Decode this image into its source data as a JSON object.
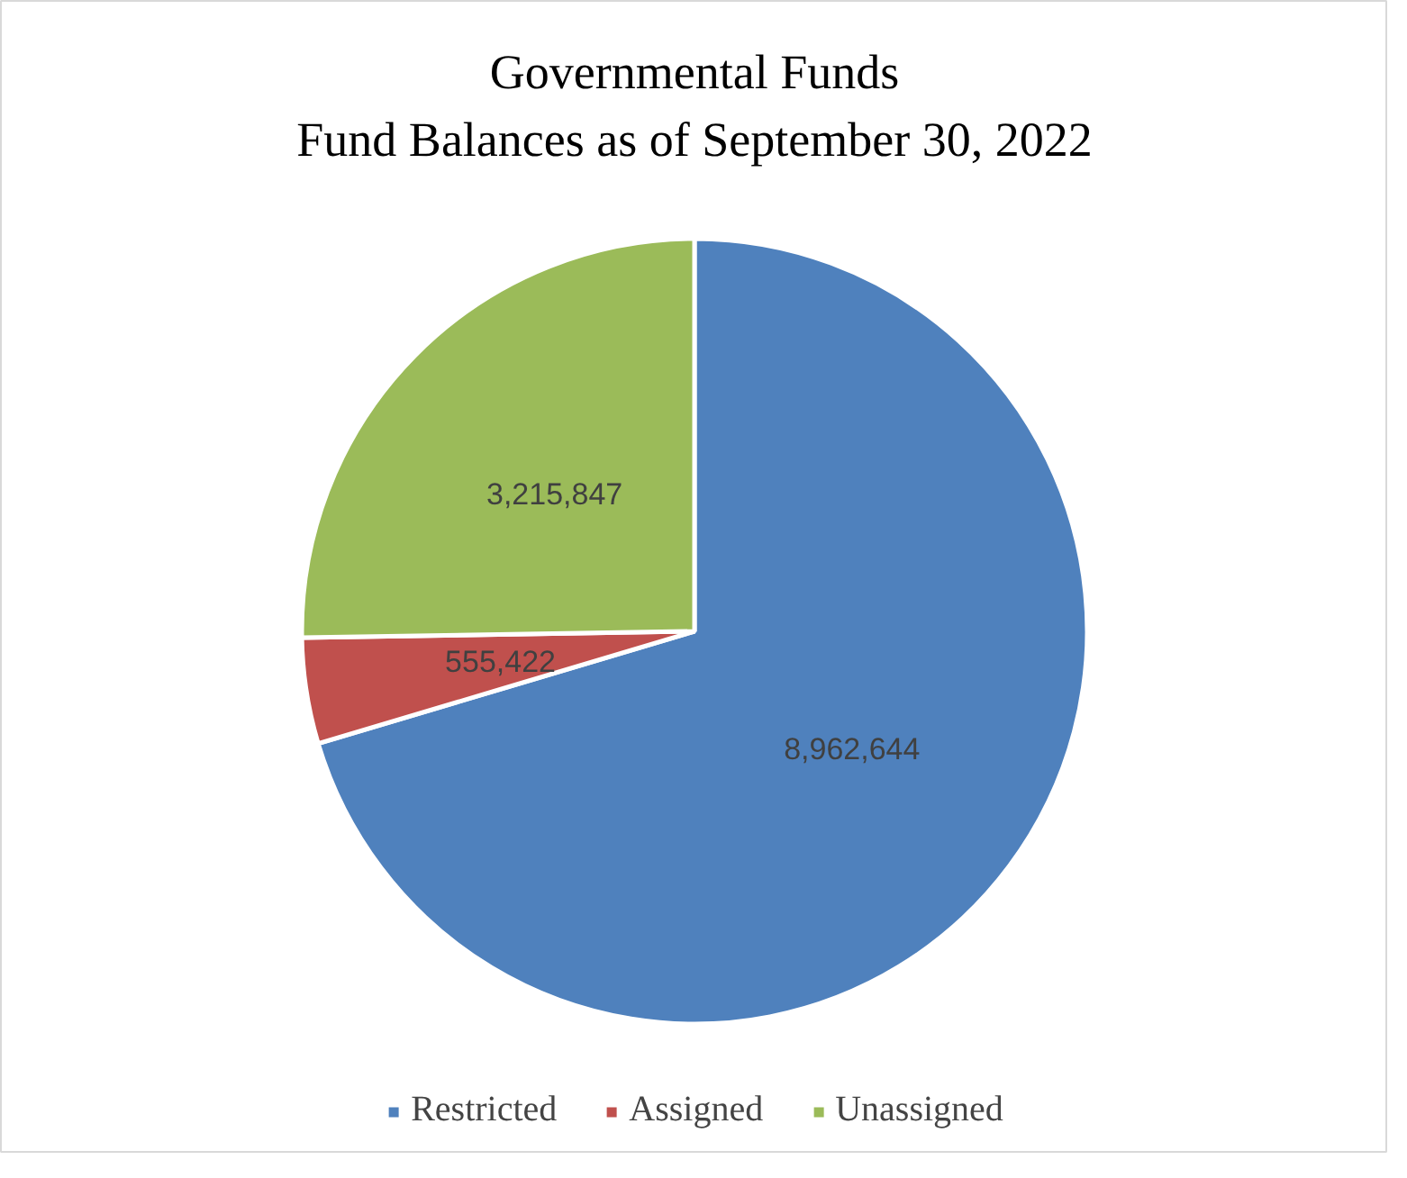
{
  "chart_data": {
    "type": "pie",
    "title": "Governmental Funds\nFund Balances as of September 30, 2022",
    "categories": [
      "Restricted",
      "Assigned",
      "Unassigned"
    ],
    "values": [
      8962644,
      555422,
      3215847
    ],
    "colors": [
      "#4f81bd",
      "#c0504d",
      "#9bbb59"
    ],
    "value_labels": [
      "8,962,644",
      "555,422",
      "3,215,847"
    ],
    "legend": "bottom"
  }
}
